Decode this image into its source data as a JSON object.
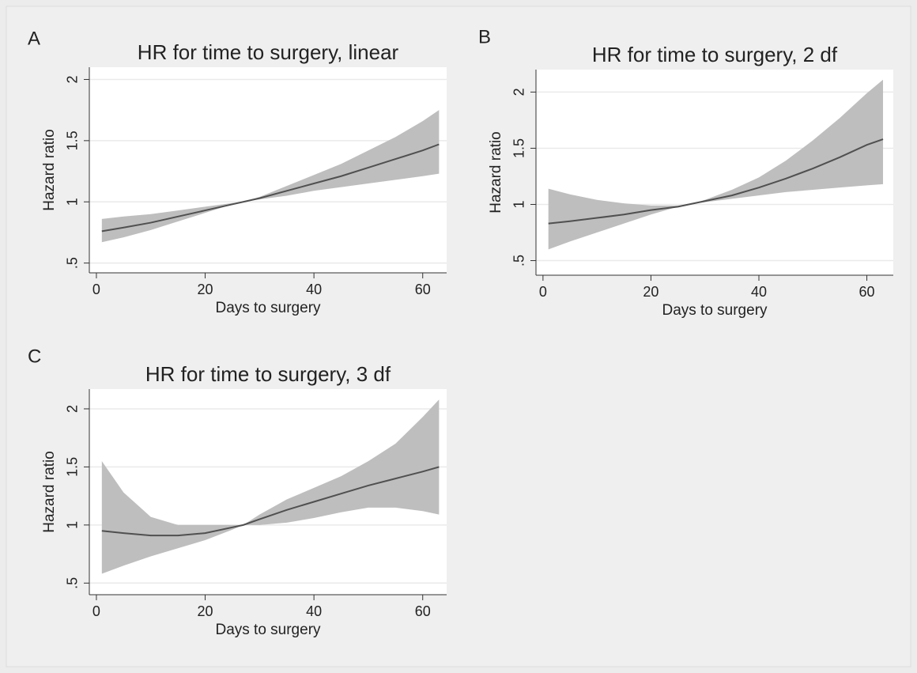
{
  "chart_data": [
    {
      "type": "line",
      "panel_label": "A",
      "title": "HR for time to surgery, linear",
      "x_label": "Days to surgery",
      "y_label": "Hazard ratio",
      "x": [
        1,
        5,
        10,
        15,
        20,
        25,
        27,
        30,
        35,
        40,
        45,
        50,
        55,
        60,
        63
      ],
      "series": [
        {
          "color": "#505050",
          "band_color": "#bebebe",
          "values": [
            0.76,
            0.79,
            0.83,
            0.88,
            0.93,
            0.98,
            1.0,
            1.03,
            1.09,
            1.15,
            1.21,
            1.28,
            1.35,
            1.42,
            1.47
          ],
          "lower": [
            0.67,
            0.71,
            0.77,
            0.84,
            0.91,
            0.98,
            1.0,
            1.02,
            1.05,
            1.09,
            1.12,
            1.15,
            1.18,
            1.21,
            1.23
          ],
          "upper": [
            0.86,
            0.88,
            0.9,
            0.93,
            0.96,
            0.99,
            1.0,
            1.04,
            1.13,
            1.22,
            1.31,
            1.42,
            1.53,
            1.66,
            1.75
          ]
        }
      ],
      "xlim": [
        -1.3,
        64.4
      ],
      "ylim": [
        0.42,
        2.1
      ],
      "xticks": [
        0,
        20,
        40,
        60
      ],
      "yticks": [
        {
          "value": 0.5,
          "label": ".5"
        },
        1,
        1.5,
        2
      ],
      "grid": true
    },
    {
      "type": "line",
      "panel_label": "B",
      "title": "HR for time to surgery, 2 df",
      "x_label": "Days to surgery",
      "y_label": "Hazard ratio",
      "x": [
        1,
        5,
        10,
        15,
        20,
        25,
        27,
        30,
        35,
        40,
        45,
        50,
        55,
        60,
        63
      ],
      "series": [
        {
          "color": "#505050",
          "band_color": "#bebebe",
          "values": [
            0.83,
            0.85,
            0.88,
            0.91,
            0.95,
            0.98,
            1.0,
            1.03,
            1.08,
            1.15,
            1.23,
            1.32,
            1.42,
            1.53,
            1.58
          ],
          "lower": [
            0.6,
            0.67,
            0.75,
            0.83,
            0.91,
            0.98,
            1.0,
            1.02,
            1.05,
            1.08,
            1.11,
            1.13,
            1.15,
            1.17,
            1.18
          ],
          "upper": [
            1.14,
            1.09,
            1.04,
            1.01,
            0.99,
            0.99,
            1.0,
            1.04,
            1.13,
            1.24,
            1.39,
            1.57,
            1.77,
            1.99,
            2.11
          ]
        }
      ],
      "xlim": [
        -1.3,
        64.9
      ],
      "ylim": [
        0.37,
        2.2
      ],
      "xticks": [
        0,
        20,
        40,
        60
      ],
      "yticks": [
        {
          "value": 0.5,
          "label": ".5"
        },
        1,
        1.5,
        2
      ],
      "grid": true
    },
    {
      "type": "line",
      "panel_label": "C",
      "title": "HR for time to surgery, 3 df",
      "x_label": "Days to surgery",
      "y_label": "Hazard ratio",
      "x": [
        1,
        5,
        10,
        15,
        20,
        25,
        27,
        30,
        35,
        40,
        45,
        50,
        55,
        60,
        63
      ],
      "series": [
        {
          "color": "#505050",
          "band_color": "#bebebe",
          "values": [
            0.95,
            0.93,
            0.91,
            0.91,
            0.93,
            0.98,
            1.0,
            1.05,
            1.13,
            1.2,
            1.27,
            1.34,
            1.4,
            1.46,
            1.5
          ],
          "lower": [
            0.58,
            0.65,
            0.73,
            0.8,
            0.87,
            0.96,
            1.0,
            1.0,
            1.02,
            1.06,
            1.11,
            1.15,
            1.15,
            1.12,
            1.09
          ],
          "upper": [
            1.55,
            1.28,
            1.07,
            1.0,
            1.0,
            1.0,
            1.0,
            1.09,
            1.22,
            1.32,
            1.42,
            1.55,
            1.7,
            1.93,
            2.08
          ]
        }
      ],
      "xlim": [
        -1.3,
        64.4
      ],
      "ylim": [
        0.4,
        2.17
      ],
      "xticks": [
        0,
        20,
        40,
        60
      ],
      "yticks": [
        {
          "value": 0.5,
          "label": ".5"
        },
        1,
        1.5,
        2
      ],
      "grid": true
    }
  ]
}
